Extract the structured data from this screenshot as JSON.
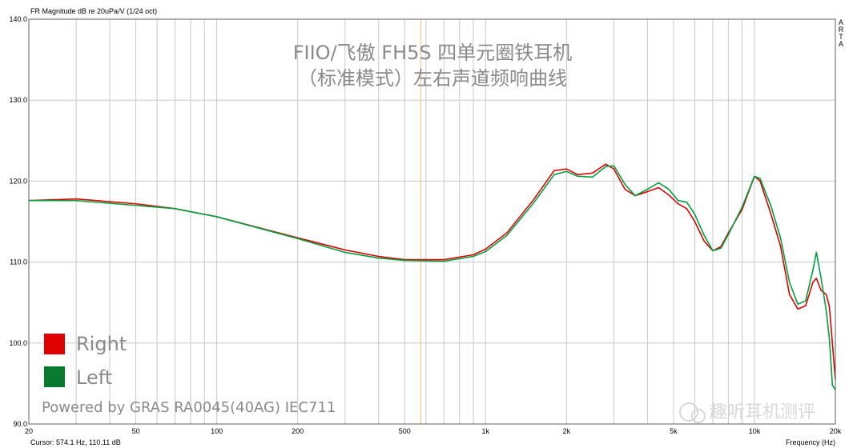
{
  "top_label": "FR Magnitude dB re 20uPa/V (1/24 oct)",
  "side_label": [
    "A",
    "R",
    "T",
    "A"
  ],
  "cursor_readout": "Cursor: 574.1 Hz, 110.11 dB",
  "x_axis_unit": "Frequency (Hz)",
  "powered_by": "Powered by GRAS RA0045(40AG) IEC711",
  "watermark": "趣听耳机测评",
  "colors": {
    "right": "#e00000",
    "left": "#00a040",
    "cursor": "#f0c080",
    "grid": "#c8c8c8"
  },
  "chart_data": {
    "type": "line",
    "title": "FIIO/飞傲 FH5S 四单元圈铁耳机",
    "subtitle": "（标准模式）左右声道频响曲线",
    "xlabel": "Frequency (Hz)",
    "ylabel": "FR Magnitude dB re 20uPa/V (1/24 oct)",
    "x_scale": "log",
    "xlim": [
      20,
      20000
    ],
    "ylim": [
      90,
      140
    ],
    "x_tick_labels": [
      {
        "v": 20,
        "t": "20"
      },
      {
        "v": 50,
        "t": "50"
      },
      {
        "v": 100,
        "t": "100"
      },
      {
        "v": 200,
        "t": "200"
      },
      {
        "v": 500,
        "t": "500"
      },
      {
        "v": 1000,
        "t": "1k"
      },
      {
        "v": 2000,
        "t": "2k"
      },
      {
        "v": 5000,
        "t": "5k"
      },
      {
        "v": 10000,
        "t": "10k"
      },
      {
        "v": 20000,
        "t": "20k"
      }
    ],
    "y_tick_labels": [
      {
        "v": 90,
        "t": "90.0"
      },
      {
        "v": 100,
        "t": "100.0"
      },
      {
        "v": 110,
        "t": "110.0"
      },
      {
        "v": 120,
        "t": "120.0"
      },
      {
        "v": 130,
        "t": "130.0"
      },
      {
        "v": 140,
        "t": "140.0"
      }
    ],
    "cursor_x": 574.1,
    "grid": true,
    "legend_position": "bottom-left",
    "series": [
      {
        "name": "Right",
        "color": "#e00000",
        "points": [
          [
            20,
            117.6
          ],
          [
            30,
            117.8
          ],
          [
            50,
            117.2
          ],
          [
            70,
            116.6
          ],
          [
            100,
            115.6
          ],
          [
            200,
            113.0
          ],
          [
            300,
            111.5
          ],
          [
            400,
            110.7
          ],
          [
            500,
            110.3
          ],
          [
            700,
            110.3
          ],
          [
            900,
            110.9
          ],
          [
            1000,
            111.6
          ],
          [
            1200,
            113.6
          ],
          [
            1500,
            117.6
          ],
          [
            1800,
            121.3
          ],
          [
            2000,
            121.5
          ],
          [
            2200,
            120.8
          ],
          [
            2500,
            121.0
          ],
          [
            2800,
            122.1
          ],
          [
            3000,
            121.5
          ],
          [
            3300,
            119.0
          ],
          [
            3600,
            118.2
          ],
          [
            4000,
            118.7
          ],
          [
            4400,
            119.2
          ],
          [
            4800,
            118.3
          ],
          [
            5200,
            117.2
          ],
          [
            5600,
            116.6
          ],
          [
            6000,
            115.0
          ],
          [
            6500,
            112.6
          ],
          [
            7000,
            111.4
          ],
          [
            7500,
            111.9
          ],
          [
            8000,
            113.6
          ],
          [
            9000,
            116.5
          ],
          [
            10000,
            120.6
          ],
          [
            10500,
            120.0
          ],
          [
            11500,
            116.0
          ],
          [
            12500,
            112.0
          ],
          [
            13500,
            106.0
          ],
          [
            14500,
            104.2
          ],
          [
            15500,
            104.6
          ],
          [
            16500,
            107.5
          ],
          [
            17000,
            108.0
          ],
          [
            17700,
            106.5
          ],
          [
            18500,
            106.0
          ],
          [
            19000,
            104.5
          ],
          [
            20000,
            95.5
          ]
        ]
      },
      {
        "name": "Left",
        "color": "#00a040",
        "points": [
          [
            20,
            117.6
          ],
          [
            30,
            117.6
          ],
          [
            50,
            117.0
          ],
          [
            70,
            116.6
          ],
          [
            100,
            115.6
          ],
          [
            200,
            112.9
          ],
          [
            300,
            111.2
          ],
          [
            400,
            110.5
          ],
          [
            500,
            110.2
          ],
          [
            700,
            110.1
          ],
          [
            900,
            110.7
          ],
          [
            1000,
            111.3
          ],
          [
            1200,
            113.3
          ],
          [
            1500,
            117.2
          ],
          [
            1800,
            120.8
          ],
          [
            2000,
            121.2
          ],
          [
            2200,
            120.6
          ],
          [
            2500,
            120.5
          ],
          [
            2800,
            121.8
          ],
          [
            3000,
            121.9
          ],
          [
            3300,
            119.6
          ],
          [
            3600,
            118.2
          ],
          [
            4000,
            119.0
          ],
          [
            4400,
            119.8
          ],
          [
            4800,
            119.0
          ],
          [
            5200,
            117.6
          ],
          [
            5600,
            117.4
          ],
          [
            6000,
            115.9
          ],
          [
            6500,
            113.3
          ],
          [
            7000,
            111.4
          ],
          [
            7500,
            111.7
          ],
          [
            8000,
            113.4
          ],
          [
            9000,
            116.8
          ],
          [
            10000,
            120.6
          ],
          [
            10500,
            120.3
          ],
          [
            11500,
            117.0
          ],
          [
            12500,
            113.0
          ],
          [
            13500,
            107.5
          ],
          [
            14500,
            104.8
          ],
          [
            15500,
            105.2
          ],
          [
            16500,
            109.0
          ],
          [
            17000,
            111.2
          ],
          [
            17700,
            108.0
          ],
          [
            18500,
            104.0
          ],
          [
            19000,
            100.5
          ],
          [
            19500,
            94.8
          ],
          [
            20000,
            94.2
          ]
        ]
      }
    ]
  }
}
